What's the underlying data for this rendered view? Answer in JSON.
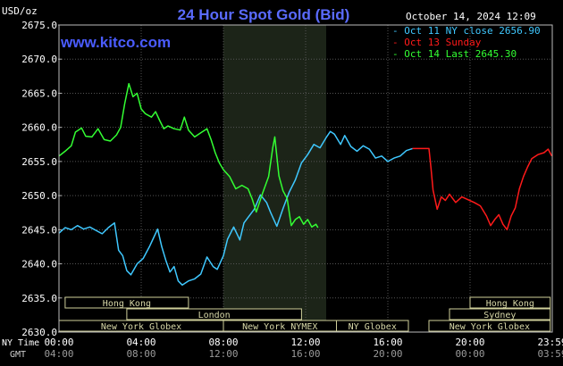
{
  "chart_data": {
    "type": "line",
    "title": "24 Hour Spot Gold (Bid)",
    "ylabel": "USD/oz",
    "timestamp": "October 14, 2024 12:09",
    "watermark": "www.kitco.com",
    "ylim": [
      2630.0,
      2675.0
    ],
    "ytick_values": [
      2630,
      2635,
      2640,
      2645,
      2650,
      2655,
      2660,
      2665,
      2670,
      2675
    ],
    "y_ticks": [
      "2630.0",
      "2635.0",
      "2640.0",
      "2645.0",
      "2650.0",
      "2655.0",
      "2660.0",
      "2665.0",
      "2670.0",
      "2675.0"
    ],
    "xlim": [
      0,
      24
    ],
    "x_unit": "hours (NY time)",
    "x_tick_positions": [
      0,
      4,
      8,
      12,
      16,
      20,
      24
    ],
    "x_ticks_ny": [
      "00:00",
      "04:00",
      "08:00",
      "12:00",
      "16:00",
      "20:00",
      "23:59"
    ],
    "x_ticks_gmt": [
      "04:00",
      "08:00",
      "12:00",
      "16:00",
      "20:00",
      "00:00",
      "03:59"
    ],
    "row_label_ny": "NY Time",
    "row_label_gmt": "GMT",
    "legend": [
      {
        "label": "Oct 11 NY close 2656.90",
        "color": "#3fc8ff"
      },
      {
        "label": "Oct 13 Sunday",
        "color": "#ff1a1a"
      },
      {
        "label": "Oct 14 Last 2645.30",
        "color": "#33ff33"
      }
    ],
    "legend_placement": "top-right",
    "grid": true,
    "shaded_period": {
      "start": 8.0,
      "end": 13.0,
      "color": "#1c2418"
    },
    "sessions": [
      {
        "name": "Hong Kong",
        "start": 0.3,
        "end": 6.3,
        "row": 1
      },
      {
        "name": "Hong Kong",
        "start": 20.0,
        "end": 23.9,
        "row": 1
      },
      {
        "name": "London",
        "start": 3.3,
        "end": 11.8,
        "row": 2
      },
      {
        "name": "Sydney",
        "start": 19.0,
        "end": 23.9,
        "row": 2
      },
      {
        "name": "New York Globex",
        "start": 0.0,
        "end": 8.0,
        "row": 3
      },
      {
        "name": "New York NYMEX",
        "start": 8.0,
        "end": 13.5,
        "row": 3
      },
      {
        "name": "NY Globex",
        "start": 13.5,
        "end": 17.0,
        "row": 3
      },
      {
        "name": "New York Globex",
        "start": 18.0,
        "end": 23.9,
        "row": 3
      }
    ],
    "series": [
      {
        "name": "Oct 11 NY close 2656.90",
        "color": "#3fc8ff",
        "points": [
          [
            0.0,
            2644.5
          ],
          [
            0.3,
            2645.3
          ],
          [
            0.6,
            2645.0
          ],
          [
            0.9,
            2645.6
          ],
          [
            1.2,
            2645.1
          ],
          [
            1.5,
            2645.4
          ],
          [
            1.8,
            2644.9
          ],
          [
            2.1,
            2644.4
          ],
          [
            2.4,
            2645.3
          ],
          [
            2.7,
            2646.0
          ],
          [
            2.9,
            2642.0
          ],
          [
            3.1,
            2641.2
          ],
          [
            3.3,
            2639.0
          ],
          [
            3.5,
            2638.4
          ],
          [
            3.8,
            2640.0
          ],
          [
            4.1,
            2640.8
          ],
          [
            4.4,
            2642.5
          ],
          [
            4.6,
            2643.8
          ],
          [
            4.8,
            2645.1
          ],
          [
            5.0,
            2642.5
          ],
          [
            5.2,
            2640.5
          ],
          [
            5.4,
            2638.8
          ],
          [
            5.6,
            2639.6
          ],
          [
            5.8,
            2637.5
          ],
          [
            6.0,
            2636.9
          ],
          [
            6.3,
            2637.5
          ],
          [
            6.6,
            2637.8
          ],
          [
            6.9,
            2638.5
          ],
          [
            7.2,
            2641.0
          ],
          [
            7.5,
            2639.6
          ],
          [
            7.7,
            2639.2
          ],
          [
            8.0,
            2641.2
          ],
          [
            8.2,
            2643.6
          ],
          [
            8.5,
            2645.4
          ],
          [
            8.8,
            2643.5
          ],
          [
            9.0,
            2646.0
          ],
          [
            9.2,
            2646.8
          ],
          [
            9.5,
            2648.0
          ],
          [
            9.8,
            2650.1
          ],
          [
            10.1,
            2649.0
          ],
          [
            10.3,
            2647.5
          ],
          [
            10.6,
            2645.5
          ],
          [
            10.9,
            2648.1
          ],
          [
            11.2,
            2650.5
          ],
          [
            11.5,
            2652.3
          ],
          [
            11.8,
            2654.8
          ],
          [
            12.1,
            2656.0
          ],
          [
            12.4,
            2657.5
          ],
          [
            12.7,
            2657.0
          ],
          [
            13.0,
            2658.5
          ],
          [
            13.2,
            2659.4
          ],
          [
            13.4,
            2659.0
          ],
          [
            13.7,
            2657.5
          ],
          [
            13.9,
            2658.8
          ],
          [
            14.2,
            2657.2
          ],
          [
            14.5,
            2656.5
          ],
          [
            14.8,
            2657.3
          ],
          [
            15.1,
            2656.8
          ],
          [
            15.4,
            2655.5
          ],
          [
            15.7,
            2655.8
          ],
          [
            16.0,
            2655.0
          ],
          [
            16.3,
            2655.5
          ],
          [
            16.6,
            2655.8
          ],
          [
            16.9,
            2656.6
          ],
          [
            17.2,
            2656.9
          ]
        ]
      },
      {
        "name": "Oct 13 Sunday",
        "color": "#ff1a1a",
        "points": [
          [
            17.2,
            2656.9
          ],
          [
            18.0,
            2656.9
          ],
          [
            18.1,
            2654.0
          ],
          [
            18.2,
            2650.8
          ],
          [
            18.4,
            2648.0
          ],
          [
            18.6,
            2649.8
          ],
          [
            18.8,
            2649.3
          ],
          [
            19.0,
            2650.2
          ],
          [
            19.3,
            2649.0
          ],
          [
            19.6,
            2649.8
          ],
          [
            19.9,
            2649.4
          ],
          [
            20.2,
            2649.0
          ],
          [
            20.5,
            2648.5
          ],
          [
            20.8,
            2647.0
          ],
          [
            21.0,
            2645.6
          ],
          [
            21.2,
            2646.5
          ],
          [
            21.4,
            2647.2
          ],
          [
            21.6,
            2645.8
          ],
          [
            21.8,
            2645.0
          ],
          [
            22.0,
            2647.0
          ],
          [
            22.2,
            2648.2
          ],
          [
            22.4,
            2651.0
          ],
          [
            22.6,
            2652.8
          ],
          [
            22.8,
            2654.2
          ],
          [
            23.0,
            2655.4
          ],
          [
            23.3,
            2656.0
          ],
          [
            23.6,
            2656.3
          ],
          [
            23.8,
            2656.8
          ],
          [
            23.98,
            2655.8
          ]
        ]
      },
      {
        "name": "Oct 14 Last 2645.30",
        "color": "#33ff33",
        "points": [
          [
            0.0,
            2655.8
          ],
          [
            0.3,
            2656.5
          ],
          [
            0.6,
            2657.3
          ],
          [
            0.8,
            2659.3
          ],
          [
            1.1,
            2659.9
          ],
          [
            1.3,
            2658.7
          ],
          [
            1.6,
            2658.6
          ],
          [
            1.9,
            2659.8
          ],
          [
            2.2,
            2658.2
          ],
          [
            2.5,
            2658.0
          ],
          [
            2.8,
            2658.9
          ],
          [
            3.0,
            2660.0
          ],
          [
            3.2,
            2663.5
          ],
          [
            3.4,
            2666.4
          ],
          [
            3.6,
            2664.5
          ],
          [
            3.8,
            2665.0
          ],
          [
            4.0,
            2662.7
          ],
          [
            4.2,
            2662.0
          ],
          [
            4.5,
            2661.5
          ],
          [
            4.7,
            2662.3
          ],
          [
            4.9,
            2661.0
          ],
          [
            5.1,
            2659.8
          ],
          [
            5.3,
            2660.2
          ],
          [
            5.6,
            2659.8
          ],
          [
            5.9,
            2659.6
          ],
          [
            6.1,
            2661.5
          ],
          [
            6.3,
            2659.6
          ],
          [
            6.6,
            2658.6
          ],
          [
            6.9,
            2659.2
          ],
          [
            7.2,
            2659.8
          ],
          [
            7.4,
            2658.2
          ],
          [
            7.6,
            2656.3
          ],
          [
            7.8,
            2654.8
          ],
          [
            8.0,
            2653.8
          ],
          [
            8.3,
            2652.8
          ],
          [
            8.6,
            2651.0
          ],
          [
            8.9,
            2651.5
          ],
          [
            9.2,
            2651.0
          ],
          [
            9.4,
            2649.5
          ],
          [
            9.6,
            2647.6
          ],
          [
            9.9,
            2650.3
          ],
          [
            10.2,
            2652.8
          ],
          [
            10.4,
            2657.0
          ],
          [
            10.5,
            2658.6
          ],
          [
            10.7,
            2652.9
          ],
          [
            10.9,
            2650.7
          ],
          [
            11.1,
            2649.6
          ],
          [
            11.3,
            2645.6
          ],
          [
            11.5,
            2646.5
          ],
          [
            11.7,
            2646.9
          ],
          [
            11.9,
            2645.8
          ],
          [
            12.1,
            2646.5
          ],
          [
            12.3,
            2645.4
          ],
          [
            12.5,
            2645.8
          ],
          [
            12.6,
            2645.3
          ]
        ]
      }
    ]
  }
}
